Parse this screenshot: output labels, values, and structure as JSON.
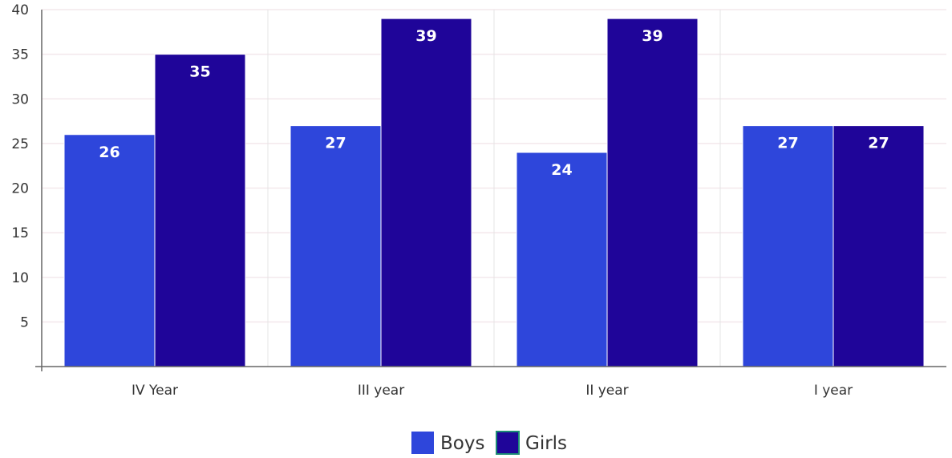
{
  "chart_data": {
    "type": "bar",
    "categories": [
      "IV Year",
      "III year",
      "II year",
      "I year"
    ],
    "series": [
      {
        "name": "Boys",
        "values": [
          26,
          27,
          24,
          27
        ],
        "color": "#2e46db"
      },
      {
        "name": "Girls",
        "values": [
          35,
          39,
          39,
          27
        ],
        "color": "#1f0599"
      }
    ],
    "yticks": [
      5,
      10,
      15,
      20,
      25,
      30,
      35,
      40
    ],
    "ylim": [
      0,
      40
    ],
    "grid": true,
    "legend": "bottom-center",
    "data_labels": true
  }
}
